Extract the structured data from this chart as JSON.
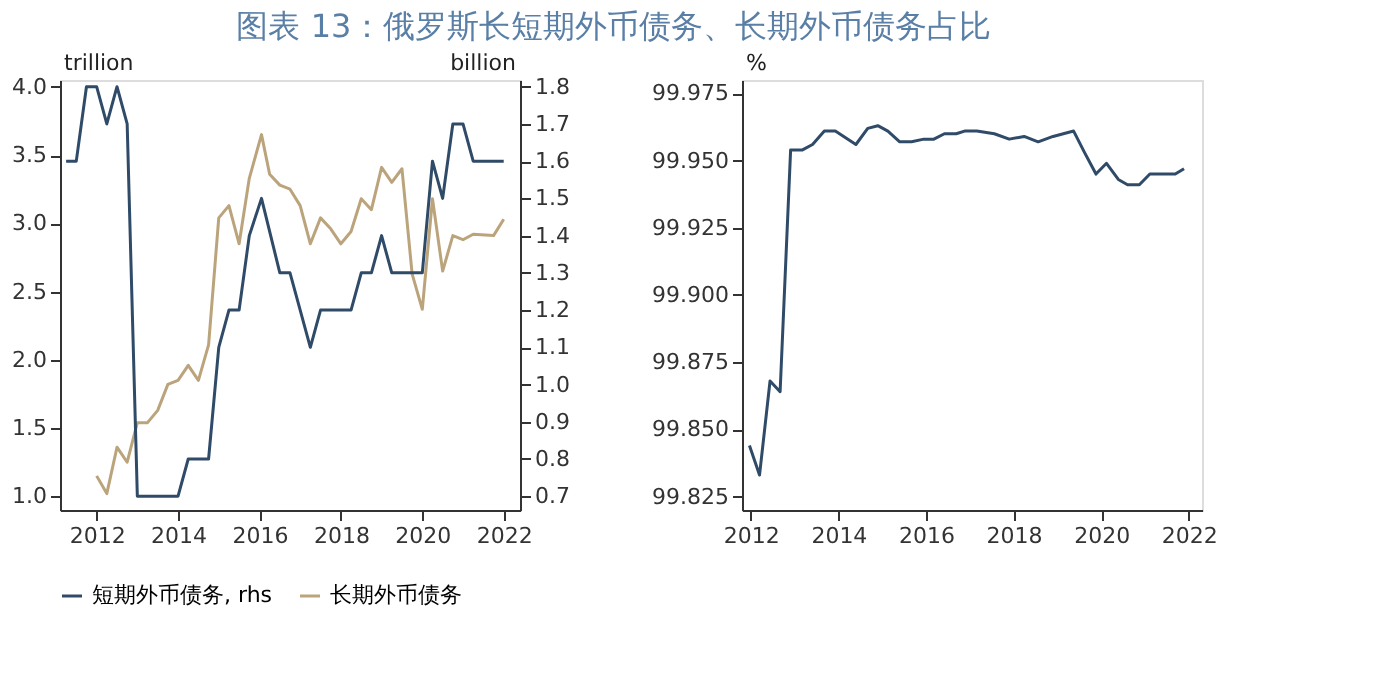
{
  "chart_data": [
    {
      "type": "line",
      "title": "图表 13：俄罗斯长短期外币债务、长期外币债务占比",
      "xlim": [
        2011.1,
        2022.4
      ],
      "xticks": [
        2012,
        2014,
        2016,
        2018,
        2020,
        2022
      ],
      "ylim": [
        0.9,
        4.05
      ],
      "yticks": [
        {
          "value": 1,
          "label": "1.0"
        },
        1.5,
        {
          "value": 2,
          "label": "2.0"
        },
        2.5,
        {
          "value": 3,
          "label": "3.0"
        },
        3.5,
        {
          "value": 4,
          "label": "4.0"
        }
      ],
      "y2lim": [
        0.663,
        1.818
      ],
      "y2ticks": [
        0.7,
        0.8,
        0.9,
        {
          "value": 1,
          "label": "1.0"
        },
        1.1,
        1.2,
        1.3,
        1.4,
        1.5,
        1.6,
        1.7,
        1.8
      ],
      "annotations": [
        "trillion",
        "billion"
      ],
      "legend": "bottom",
      "grid": false,
      "series": [
        {
          "name": "短期外币债务, rhs",
          "color": "#2f4b68",
          "axis": "y2",
          "x": [
            2011.25,
            2011.5,
            2011.75,
            2012.0,
            2012.25,
            2012.5,
            2012.75,
            2013.0,
            2013.25,
            2013.5,
            2013.75,
            2014.0,
            2014.25,
            2014.5,
            2014.75,
            2015.0,
            2015.25,
            2015.5,
            2015.75,
            2016.05,
            2016.5,
            2016.75,
            2017.25,
            2017.5,
            2018.25,
            2018.5,
            2018.75,
            2019.0,
            2019.25,
            2020.0,
            2020.25,
            2020.5,
            2020.75,
            2021.0,
            2021.25,
            2022.0
          ],
          "values": [
            1.6,
            1.6,
            1.8,
            1.8,
            1.7,
            1.8,
            1.7,
            0.7,
            0.7,
            0.7,
            0.7,
            0.7,
            0.8,
            0.8,
            0.8,
            1.1,
            1.2,
            1.2,
            1.4,
            1.5,
            1.3,
            1.3,
            1.1,
            1.2,
            1.2,
            1.3,
            1.3,
            1.4,
            1.3,
            1.3,
            1.6,
            1.5,
            1.7,
            1.7,
            1.6,
            1.6
          ]
        },
        {
          "name": "长期外币债务",
          "color": "#bba47c",
          "x": [
            2012.0,
            2012.25,
            2012.5,
            2012.75,
            2013.0,
            2013.25,
            2013.5,
            2013.75,
            2014.0,
            2014.25,
            2014.5,
            2014.75,
            2015.0,
            2015.25,
            2015.5,
            2015.75,
            2016.05,
            2016.25,
            2016.5,
            2016.75,
            2017.0,
            2017.25,
            2017.5,
            2017.75,
            2018.0,
            2018.25,
            2018.5,
            2018.75,
            2019.0,
            2019.25,
            2019.5,
            2019.75,
            2020.0,
            2020.25,
            2020.5,
            2020.75,
            2021.0,
            2021.25,
            2021.75,
            2022.0
          ],
          "values": [
            1.15,
            1.02,
            1.36,
            1.25,
            1.54,
            1.54,
            1.63,
            1.82,
            1.85,
            1.96,
            1.85,
            2.11,
            3.04,
            3.13,
            2.85,
            3.33,
            3.65,
            3.36,
            3.28,
            3.25,
            3.13,
            2.85,
            3.04,
            2.96,
            2.85,
            2.94,
            3.18,
            3.1,
            3.41,
            3.3,
            3.4,
            2.63,
            2.37,
            3.18,
            2.65,
            2.91,
            2.88,
            2.92,
            2.91,
            3.03
          ]
        }
      ]
    },
    {
      "type": "line",
      "xlim": [
        2011.8,
        2022.3
      ],
      "xticks": [
        2012,
        2014,
        2016,
        2018,
        2020,
        2022
      ],
      "ylim": [
        99.82,
        99.98
      ],
      "yticks": [
        99.825,
        {
          "value": 99.85,
          "label": "99.850"
        },
        99.875,
        {
          "value": 99.9,
          "label": "99.900"
        },
        99.925,
        {
          "value": 99.95,
          "label": "99.950"
        },
        99.975
      ],
      "annotations": [
        "%"
      ],
      "grid": false,
      "series": [
        {
          "color": "#2f4b68",
          "x": [
            2011.97,
            2012.2,
            2012.44,
            2012.67,
            2012.91,
            2013.18,
            2013.41,
            2013.68,
            2013.93,
            2014.4,
            2014.67,
            2014.9,
            2015.13,
            2015.4,
            2015.67,
            2015.95,
            2016.18,
            2016.42,
            2016.69,
            2016.88,
            2017.16,
            2017.56,
            2017.9,
            2018.24,
            2018.56,
            2018.9,
            2019.37,
            2019.62,
            2019.88,
            2020.12,
            2020.39,
            2020.6,
            2020.87,
            2021.11,
            2021.69,
            2021.89
          ],
          "values": [
            99.844,
            99.833,
            99.868,
            99.864,
            99.954,
            99.954,
            99.956,
            99.961,
            99.961,
            99.956,
            99.962,
            99.963,
            99.961,
            99.957,
            99.957,
            99.958,
            99.958,
            99.96,
            99.96,
            99.961,
            99.961,
            99.96,
            99.958,
            99.959,
            99.957,
            99.959,
            99.961,
            99.953,
            99.945,
            99.949,
            99.943,
            99.941,
            99.941,
            99.945,
            99.945,
            99.947
          ]
        }
      ]
    }
  ]
}
